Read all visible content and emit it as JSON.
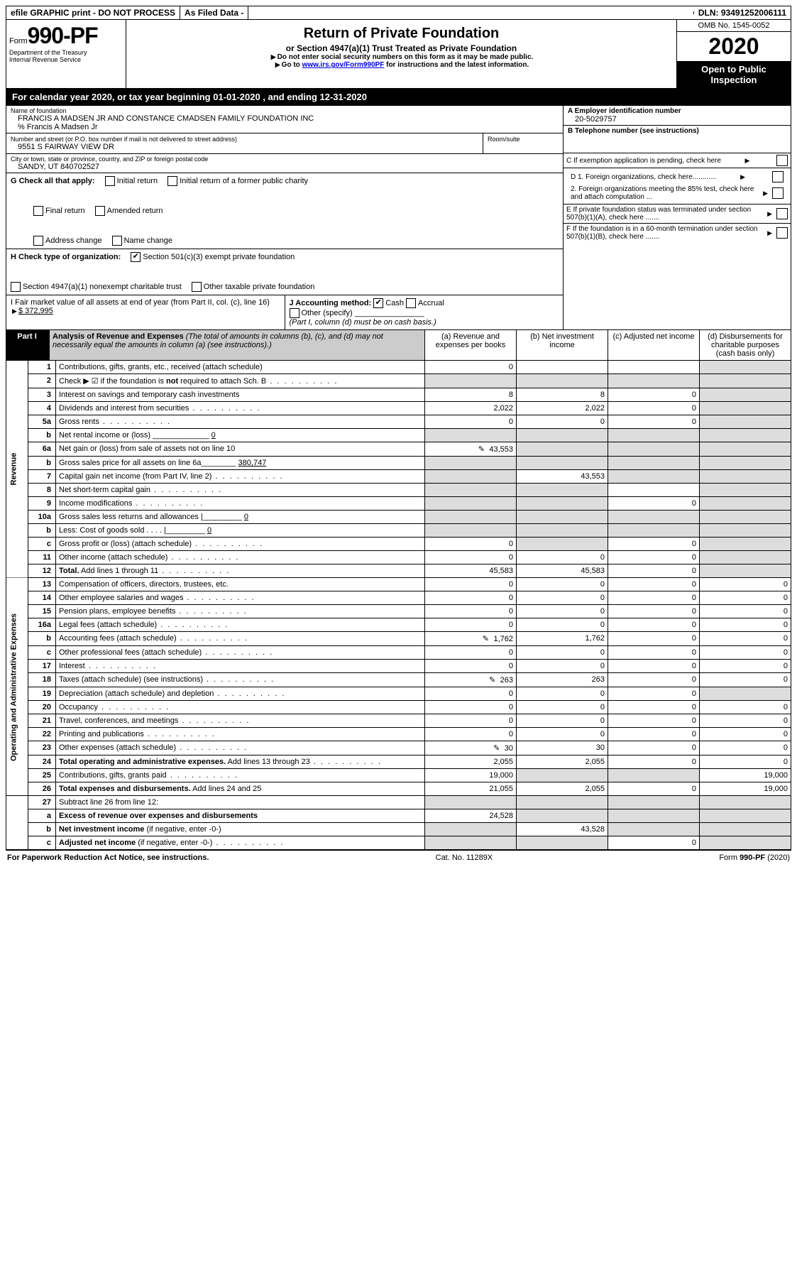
{
  "topbar": {
    "efile": "efile GRAPHIC print - DO NOT PROCESS",
    "asfiled": "As Filed Data -",
    "dln": "DLN: 93491252006111"
  },
  "header": {
    "form_prefix": "Form",
    "form_number": "990-PF",
    "dept1": "Department of the Treasury",
    "dept2": "Internal Revenue Service",
    "title": "Return of Private Foundation",
    "subtitle": "or Section 4947(a)(1) Trust Treated as Private Foundation",
    "warn1": "Do not enter social security numbers on this form as it may be made public.",
    "warn2_pre": "Go to ",
    "warn2_link": "www.irs.gov/Form990PF",
    "warn2_post": " for instructions and the latest information.",
    "omb": "OMB No. 1545-0052",
    "year": "2020",
    "open": "Open to Public Inspection"
  },
  "calyear": "For calendar year 2020, or tax year beginning 01-01-2020               , and ending 12-31-2020",
  "info": {
    "name_label": "Name of foundation",
    "name": "FRANCIS A MADSEN JR AND CONSTANCE CMADSEN FAMILY FOUNDATION INC",
    "co": "% Francis A Madsen Jr",
    "addr_label": "Number and street (or P.O. box number if mail is not delivered to street address)",
    "room_label": "Room/suite",
    "addr": "9551 S FAIRWAY VIEW DR",
    "city_label": "City or town, state or province, country, and ZIP or foreign postal code",
    "city": "SANDY, UT  840702527",
    "A_label": "A Employer identification number",
    "A_val": "20-5029757",
    "B_label": "B Telephone number (see instructions)",
    "C_label": "C If exemption application is pending, check here",
    "D1": "D 1. Foreign organizations, check here............",
    "D2": "2. Foreign organizations meeting the 85% test, check here and attach computation ...",
    "E": "E  If private foundation status was terminated under section 507(b)(1)(A), check here .......",
    "F": "F  If the foundation is in a 60-month termination under section 507(b)(1)(B), check here ......."
  },
  "G": {
    "label": "G Check all that apply:",
    "opts": [
      "Initial return",
      "Initial return of a former public charity",
      "Final return",
      "Amended return",
      "Address change",
      "Name change"
    ]
  },
  "H": {
    "label": "H Check type of organization:",
    "opt1": "Section 501(c)(3) exempt private foundation",
    "opt2": "Section 4947(a)(1) nonexempt charitable trust",
    "opt3": "Other taxable private foundation"
  },
  "I": {
    "label": "I Fair market value of all assets at end of year (from Part II, col. (c), line 16)",
    "val": "$  372,995"
  },
  "J": {
    "label": "J Accounting method:",
    "cash": "Cash",
    "accrual": "Accrual",
    "other": "Other (specify)",
    "note": "(Part I, column (d) must be on cash basis.)"
  },
  "part1": {
    "label": "Part I",
    "title": "Analysis of Revenue and Expenses",
    "paren": "(The total of amounts in columns (b), (c), and (d) may not necessarily equal the amounts in column (a) (see instructions).)",
    "col_a": "(a)  Revenue and expenses per books",
    "col_b": "(b)  Net investment income",
    "col_c": "(c)  Adjusted net income",
    "col_d": "(d)  Disbursements for charitable purposes (cash basis only)"
  },
  "side": {
    "revenue": "Revenue",
    "expenses": "Operating and Administrative Expenses"
  },
  "rows": [
    {
      "n": "1",
      "d": "Contributions, gifts, grants, etc., received (attach schedule)",
      "a": "0",
      "b": "",
      "c": "",
      "dcol": "shade"
    },
    {
      "n": "2",
      "d": "Check ▶ ☑ if the foundation is <b>not</b> required to attach Sch. B",
      "a": "shade",
      "b": "shade",
      "c": "shade",
      "dcol": "shade",
      "dots": true
    },
    {
      "n": "3",
      "d": "Interest on savings and temporary cash investments",
      "a": "8",
      "b": "8",
      "c": "0",
      "dcol": "shade"
    },
    {
      "n": "4",
      "d": "Dividends and interest from securities",
      "a": "2,022",
      "b": "2,022",
      "c": "0",
      "dcol": "shade",
      "dots": true
    },
    {
      "n": "5a",
      "d": "Gross rents",
      "a": "0",
      "b": "0",
      "c": "0",
      "dcol": "shade",
      "dots": true
    },
    {
      "n": "b",
      "d": "Net rental income or (loss) _____________ <u>0</u>",
      "a": "shade",
      "b": "shade",
      "c": "shade",
      "dcol": "shade"
    },
    {
      "n": "6a",
      "d": "Net gain or (loss) from sale of assets not on line 10",
      "icon": true,
      "a": "43,553",
      "b": "shade",
      "c": "shade",
      "dcol": "shade"
    },
    {
      "n": "b",
      "d": "Gross sales price for all assets on line 6a________ <u>380,747</u>",
      "a": "shade",
      "b": "shade",
      "c": "shade",
      "dcol": "shade"
    },
    {
      "n": "7",
      "d": "Capital gain net income (from Part IV, line 2)",
      "a": "shade",
      "b": "43,553",
      "c": "shade",
      "dcol": "shade",
      "dots": true
    },
    {
      "n": "8",
      "d": "Net short-term capital gain",
      "a": "shade",
      "b": "shade",
      "c": "",
      "dcol": "shade",
      "dots": true
    },
    {
      "n": "9",
      "d": "Income modifications",
      "a": "shade",
      "b": "shade",
      "c": "0",
      "dcol": "shade",
      "dots": true
    },
    {
      "n": "10a",
      "d": "Gross sales less returns and allowances  |_________ <u>0</u>",
      "a": "shade",
      "b": "shade",
      "c": "shade",
      "dcol": "shade"
    },
    {
      "n": "b",
      "d": "Less: Cost of goods sold   . . . .  |_________ <u>0</u>",
      "a": "shade",
      "b": "shade",
      "c": "shade",
      "dcol": "shade"
    },
    {
      "n": "c",
      "d": "Gross profit or (loss) (attach schedule)",
      "a": "0",
      "b": "shade",
      "c": "0",
      "dcol": "shade",
      "dots": true
    },
    {
      "n": "11",
      "d": "Other income (attach schedule)",
      "a": "0",
      "b": "0",
      "c": "0",
      "dcol": "shade",
      "dots": true
    },
    {
      "n": "12",
      "d": "<b>Total.</b> Add lines 1 through 11",
      "a": "45,583",
      "b": "45,583",
      "c": "0",
      "dcol": "shade",
      "dots": true
    }
  ],
  "exprows": [
    {
      "n": "13",
      "d": "Compensation of officers, directors, trustees, etc.",
      "a": "0",
      "b": "0",
      "c": "0",
      "dcol": "0"
    },
    {
      "n": "14",
      "d": "Other employee salaries and wages",
      "a": "0",
      "b": "0",
      "c": "0",
      "dcol": "0",
      "dots": true
    },
    {
      "n": "15",
      "d": "Pension plans, employee benefits",
      "a": "0",
      "b": "0",
      "c": "0",
      "dcol": "0",
      "dots": true
    },
    {
      "n": "16a",
      "d": "Legal fees (attach schedule)",
      "a": "0",
      "b": "0",
      "c": "0",
      "dcol": "0",
      "dots": true
    },
    {
      "n": "b",
      "d": "Accounting fees (attach schedule)",
      "icon": true,
      "a": "1,762",
      "b": "1,762",
      "c": "0",
      "dcol": "0",
      "dots": true
    },
    {
      "n": "c",
      "d": "Other professional fees (attach schedule)",
      "a": "0",
      "b": "0",
      "c": "0",
      "dcol": "0",
      "dots": true
    },
    {
      "n": "17",
      "d": "Interest",
      "a": "0",
      "b": "0",
      "c": "0",
      "dcol": "0",
      "dots": true
    },
    {
      "n": "18",
      "d": "Taxes (attach schedule) (see instructions)",
      "icon": true,
      "a": "263",
      "b": "263",
      "c": "0",
      "dcol": "0",
      "dots": true
    },
    {
      "n": "19",
      "d": "Depreciation (attach schedule) and depletion",
      "a": "0",
      "b": "0",
      "c": "0",
      "dcol": "shade",
      "dots": true
    },
    {
      "n": "20",
      "d": "Occupancy",
      "a": "0",
      "b": "0",
      "c": "0",
      "dcol": "0",
      "dots": true
    },
    {
      "n": "21",
      "d": "Travel, conferences, and meetings",
      "a": "0",
      "b": "0",
      "c": "0",
      "dcol": "0",
      "dots": true
    },
    {
      "n": "22",
      "d": "Printing and publications",
      "a": "0",
      "b": "0",
      "c": "0",
      "dcol": "0",
      "dots": true
    },
    {
      "n": "23",
      "d": "Other expenses (attach schedule)",
      "icon": true,
      "a": "30",
      "b": "30",
      "c": "0",
      "dcol": "0",
      "dots": true
    },
    {
      "n": "24",
      "d": "<b>Total operating and administrative expenses.</b> Add lines 13 through 23",
      "a": "2,055",
      "b": "2,055",
      "c": "0",
      "dcol": "0",
      "dots": true
    },
    {
      "n": "25",
      "d": "Contributions, gifts, grants paid",
      "a": "19,000",
      "b": "shade",
      "c": "shade",
      "dcol": "19,000",
      "dots": true
    },
    {
      "n": "26",
      "d": "<b>Total expenses and disbursements.</b> Add lines 24 and 25",
      "a": "21,055",
      "b": "2,055",
      "c": "0",
      "dcol": "19,000"
    }
  ],
  "netrows": [
    {
      "n": "27",
      "d": "Subtract line 26 from line 12:",
      "a": "shade",
      "b": "shade",
      "c": "shade",
      "dcol": "shade"
    },
    {
      "n": "a",
      "d": "<b>Excess of revenue over expenses and disbursements</b>",
      "a": "24,528",
      "b": "shade",
      "c": "shade",
      "dcol": "shade"
    },
    {
      "n": "b",
      "d": "<b>Net investment income</b> (if negative, enter -0-)",
      "a": "shade",
      "b": "43,528",
      "c": "shade",
      "dcol": "shade"
    },
    {
      "n": "c",
      "d": "<b>Adjusted net income</b> (if negative, enter -0-)",
      "a": "shade",
      "b": "shade",
      "c": "0",
      "dcol": "shade",
      "dots": true
    }
  ],
  "footer": {
    "left": "For Paperwork Reduction Act Notice, see instructions.",
    "mid": "Cat. No. 11289X",
    "right": "Form 990-PF (2020)"
  }
}
